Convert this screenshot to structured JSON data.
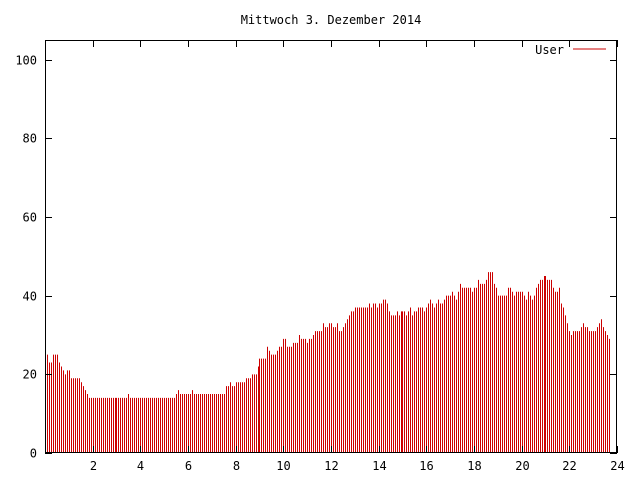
{
  "chart_data": {
    "type": "bar",
    "title": "Mittwoch 3. Dezember 2014",
    "xlabel": "",
    "ylabel": "",
    "xlim": [
      0,
      24
    ],
    "ylim": [
      0,
      105
    ],
    "x_ticks": [
      2,
      4,
      6,
      8,
      10,
      12,
      14,
      16,
      18,
      20,
      22,
      24
    ],
    "x_tick_labels": [
      "2",
      "4",
      "6",
      "8",
      "10",
      "12",
      "14",
      "16",
      "18",
      "20",
      "22",
      "24"
    ],
    "y_ticks": [
      0,
      20,
      40,
      60,
      80,
      100
    ],
    "y_tick_labels": [
      "0",
      "20",
      "40",
      "60",
      "80",
      "100"
    ],
    "grid": false,
    "legend_position": "top-right",
    "series": [
      {
        "name": "User",
        "color": "#cc0000",
        "x_start": 0,
        "x_step": 0.0833333,
        "values": [
          26,
          25,
          23,
          23,
          25,
          25,
          25,
          23,
          22,
          21,
          20,
          21,
          21,
          19,
          19,
          19,
          19,
          19,
          18,
          17,
          16,
          15,
          14,
          14,
          14,
          14,
          14,
          14,
          14,
          14,
          14,
          14,
          14,
          14,
          14,
          14,
          14,
          14,
          14,
          14,
          14,
          14,
          15,
          14,
          14,
          14,
          14,
          14,
          14,
          14,
          14,
          14,
          14,
          14,
          14,
          14,
          14,
          14,
          14,
          14,
          14,
          14,
          14,
          14,
          14,
          14,
          15,
          16,
          15,
          15,
          15,
          15,
          15,
          15,
          16,
          15,
          15,
          15,
          15,
          15,
          15,
          15,
          15,
          15,
          15,
          15,
          15,
          15,
          15,
          15,
          15,
          17,
          17,
          18,
          17,
          17,
          18,
          18,
          18,
          18,
          18,
          19,
          19,
          19,
          20,
          20,
          20,
          22,
          24,
          24,
          24,
          24,
          27,
          26,
          25,
          25,
          25,
          26,
          27,
          27,
          29,
          29,
          27,
          27,
          27,
          28,
          28,
          28,
          30,
          29,
          29,
          29,
          28,
          29,
          29,
          30,
          31,
          31,
          31,
          31,
          33,
          32,
          32,
          33,
          33,
          32,
          32,
          33,
          31,
          31,
          32,
          33,
          34,
          35,
          36,
          36,
          37,
          37,
          37,
          37,
          37,
          37,
          37,
          38,
          37,
          38,
          38,
          37,
          38,
          38,
          39,
          39,
          38,
          36,
          35,
          35,
          35,
          36,
          35,
          36,
          36,
          36,
          35,
          36,
          37,
          35,
          36,
          36,
          37,
          37,
          37,
          36,
          37,
          38,
          39,
          38,
          37,
          38,
          39,
          38,
          38,
          39,
          40,
          40,
          40,
          41,
          40,
          39,
          41,
          43,
          42,
          42,
          42,
          42,
          42,
          41,
          42,
          42,
          44,
          43,
          43,
          43,
          44,
          46,
          46,
          46,
          43,
          42,
          40,
          40,
          40,
          40,
          40,
          42,
          42,
          41,
          40,
          41,
          41,
          41,
          41,
          40,
          39,
          41,
          40,
          39,
          40,
          42,
          43,
          44,
          44,
          45,
          45,
          44,
          44,
          44,
          42,
          41,
          41,
          42,
          38,
          37,
          35,
          33,
          31,
          30,
          31,
          31,
          31,
          31,
          32,
          33,
          32,
          32,
          31,
          31,
          31,
          31,
          32,
          33,
          34,
          32,
          31,
          30,
          29
        ]
      }
    ]
  }
}
